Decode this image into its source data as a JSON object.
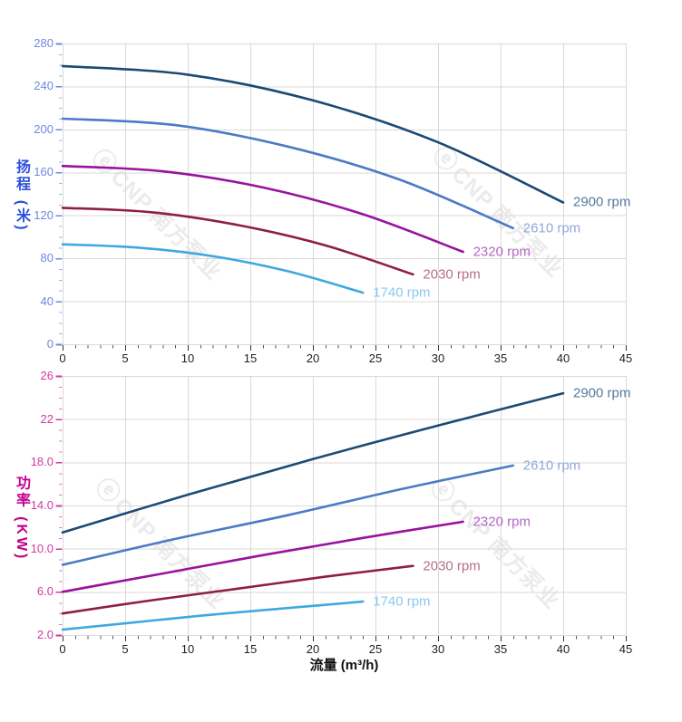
{
  "watermark": {
    "logo_icon": "ⓔ",
    "text": "CNP 南方泵业",
    "color": "#ebebeb"
  },
  "colors": {
    "grid": "#d9d9d9",
    "xtick": "#1f1f1f",
    "background": "#ffffff"
  },
  "chart_data": [
    {
      "type": "line",
      "title": "",
      "ylabel": "扬程 (米)",
      "xlabel": "",
      "xlim": [
        0,
        45
      ],
      "ylim": [
        0,
        280
      ],
      "grid": true,
      "legend_position": "right-of-curve-end",
      "x_minor_step": 1,
      "y_minor_step": 10,
      "axis_color": "#6f87e4",
      "title_color": "#2d4fd9",
      "xticks": [
        {
          "v": 0,
          "label": "0"
        },
        {
          "v": 5,
          "label": "5"
        },
        {
          "v": 10,
          "label": "10"
        },
        {
          "v": 15,
          "label": "15"
        },
        {
          "v": 20,
          "label": "20"
        },
        {
          "v": 25,
          "label": "25"
        },
        {
          "v": 30,
          "label": "30"
        },
        {
          "v": 35,
          "label": "35"
        },
        {
          "v": 40,
          "label": "40"
        },
        {
          "v": 45,
          "label": "45"
        }
      ],
      "yticks": [
        {
          "v": 0,
          "label": "0"
        },
        {
          "v": 40,
          "label": "40"
        },
        {
          "v": 80,
          "label": "80"
        },
        {
          "v": 120,
          "label": "120"
        },
        {
          "v": 160,
          "label": "160"
        },
        {
          "v": 200,
          "label": "200"
        },
        {
          "v": 240,
          "label": "240"
        },
        {
          "v": 280,
          "label": "280"
        }
      ],
      "series": [
        {
          "name": "2900 rpm",
          "color": "#1b4a73",
          "label_color": "#55799f",
          "points": [
            [
              0,
              259
            ],
            [
              10,
              251
            ],
            [
              20,
              227
            ],
            [
              30,
              188
            ],
            [
              40,
              132
            ]
          ]
        },
        {
          "name": "2610 rpm",
          "color": "#4d79c6",
          "label_color": "#8fa8dc",
          "points": [
            [
              0,
              210
            ],
            [
              9,
              204
            ],
            [
              18,
              184
            ],
            [
              27,
              153
            ],
            [
              36,
              108
            ]
          ]
        },
        {
          "name": "2320 rpm",
          "color": "#9a129e",
          "label_color": "#b468c3",
          "points": [
            [
              0,
              166
            ],
            [
              8,
              161
            ],
            [
              16,
              146
            ],
            [
              24,
              121
            ],
            [
              32,
              86
            ]
          ]
        },
        {
          "name": "2030 rpm",
          "color": "#8e1f3e",
          "label_color": "#b76e83",
          "points": [
            [
              0,
              127
            ],
            [
              7,
              123
            ],
            [
              14,
              111
            ],
            [
              21,
              92
            ],
            [
              28,
              65
            ]
          ]
        },
        {
          "name": "1740 rpm",
          "color": "#3ea9e0",
          "label_color": "#89c9f0",
          "points": [
            [
              0,
              93
            ],
            [
              6,
              90
            ],
            [
              12,
              82
            ],
            [
              18,
              68
            ],
            [
              24,
              48
            ]
          ]
        }
      ]
    },
    {
      "type": "line",
      "title": "",
      "ylabel": "功率 (KW)",
      "xlabel": "流量 (m³/h)",
      "xlim": [
        0,
        45
      ],
      "ylim": [
        2,
        26
      ],
      "grid": true,
      "legend_position": "right-of-curve-end",
      "x_minor_step": 1,
      "y_minor_step": 1,
      "axis_color": "#d13ba0",
      "title_color": "#c4008e",
      "xticks": [
        {
          "v": 0,
          "label": "0"
        },
        {
          "v": 5,
          "label": "5"
        },
        {
          "v": 10,
          "label": "10"
        },
        {
          "v": 15,
          "label": "15"
        },
        {
          "v": 20,
          "label": "20"
        },
        {
          "v": 25,
          "label": "25"
        },
        {
          "v": 30,
          "label": "30"
        },
        {
          "v": 35,
          "label": "35"
        },
        {
          "v": 40,
          "label": "40"
        },
        {
          "v": 45,
          "label": "45"
        }
      ],
      "yticks": [
        {
          "v": 2,
          "label": "2.0"
        },
        {
          "v": 6,
          "label": "6.0"
        },
        {
          "v": 10,
          "label": "10.0"
        },
        {
          "v": 14,
          "label": "14.0"
        },
        {
          "v": 18,
          "label": "18.0"
        },
        {
          "v": 22,
          "label": "22"
        },
        {
          "v": 26,
          "label": "26"
        }
      ],
      "series": [
        {
          "name": "2900 rpm",
          "color": "#1b4a73",
          "label_color": "#55799f",
          "points": [
            [
              0,
              11.5
            ],
            [
              10,
              15.0
            ],
            [
              20,
              18.3
            ],
            [
              30,
              21.4
            ],
            [
              40,
              24.4
            ]
          ]
        },
        {
          "name": "2610 rpm",
          "color": "#4d79c6",
          "label_color": "#8fa8dc",
          "points": [
            [
              0,
              8.5
            ],
            [
              9,
              10.9
            ],
            [
              18,
              13.1
            ],
            [
              27,
              15.5
            ],
            [
              36,
              17.7
            ]
          ]
        },
        {
          "name": "2320 rpm",
          "color": "#9a129e",
          "label_color": "#b468c3",
          "points": [
            [
              0,
              6.0
            ],
            [
              8,
              7.7
            ],
            [
              16,
              9.4
            ],
            [
              24,
              11.0
            ],
            [
              32,
              12.5
            ]
          ]
        },
        {
          "name": "2030 rpm",
          "color": "#8e1f3e",
          "label_color": "#b76e83",
          "points": [
            [
              0,
              4.0
            ],
            [
              7,
              5.2
            ],
            [
              14,
              6.3
            ],
            [
              21,
              7.4
            ],
            [
              28,
              8.4
            ]
          ]
        },
        {
          "name": "1740 rpm",
          "color": "#3ea9e0",
          "label_color": "#89c9f0",
          "points": [
            [
              0,
              2.5
            ],
            [
              6,
              3.2
            ],
            [
              12,
              3.9
            ],
            [
              18,
              4.5
            ],
            [
              24,
              5.1
            ]
          ]
        }
      ]
    }
  ]
}
